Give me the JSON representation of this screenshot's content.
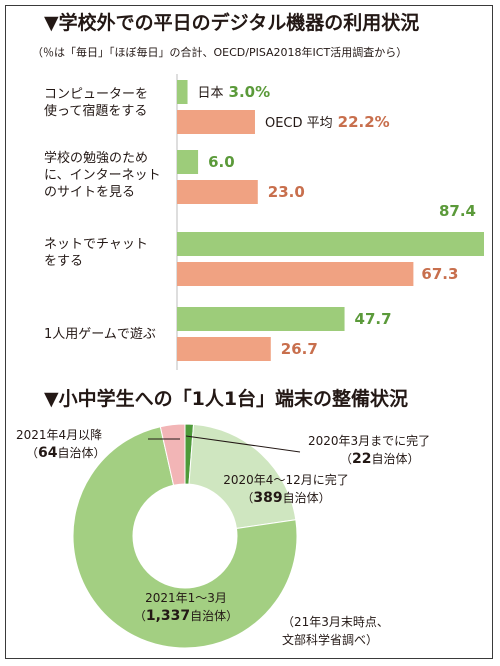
{
  "chart_data": [
    {
      "type": "bar",
      "title": "▼学校外での平日のデジタル機器の利用状況",
      "subtitle": "（％は「毎日」「ほぼ毎日」の合計、OECD/PISA2018年ICT活用調査から）",
      "categories": [
        [
          "コンピューターを",
          "使って宿題をする"
        ],
        [
          "学校の勉強のため",
          "に、インターネット",
          "のサイトを見る"
        ],
        [
          "ネットでチャット",
          "をする"
        ],
        [
          "1人用ゲームで遊ぶ"
        ]
      ],
      "series": [
        {
          "name": "日本",
          "values": [
            3.0,
            6.0,
            87.4,
            47.7
          ]
        },
        {
          "name": "OECD 平均",
          "values": [
            22.2,
            23.0,
            67.3,
            26.7
          ]
        }
      ],
      "value_labels": [
        [
          "3.0%",
          "6.0",
          "87.4",
          "47.7"
        ],
        [
          "22.2%",
          "23.0",
          "67.3",
          "26.7"
        ]
      ],
      "xlim": [
        0,
        87.4
      ],
      "colors": {
        "japan": "#9dcc7a",
        "oecd": "#f0a282"
      },
      "text_colors": {
        "japan": "#5b9a3a",
        "oecd": "#c86f4d"
      }
    },
    {
      "type": "pie",
      "title": "▼小中学生への「1人1台」端末の整備状況",
      "slices": [
        {
          "label": "2020年3月までに完了",
          "count_label": "（22自治体）",
          "count": "22",
          "value": 22,
          "color": "#4e9a3a"
        },
        {
          "label": "2020年4〜12月に完了",
          "count_label": "（389自治体）",
          "count": "389",
          "value": 389,
          "color": "#cfe6c0"
        },
        {
          "label": "2021年1〜3月",
          "count_label": "（1,337自治体）",
          "count": "1,337",
          "value": 1337,
          "color": "#a3cf82"
        },
        {
          "label": "2021年4月以降",
          "count_label": "（64自治体）",
          "count": "64",
          "value": 64,
          "color": "#f2b5b6"
        }
      ],
      "note": [
        "（21年3月末時点、",
        "文部科学省調べ）"
      ]
    }
  ]
}
